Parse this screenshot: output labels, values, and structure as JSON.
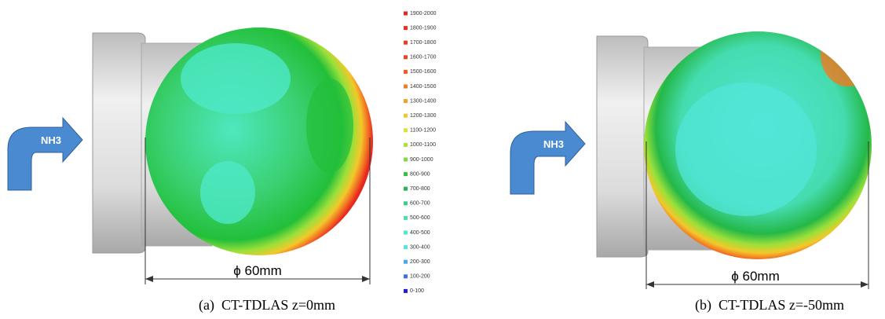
{
  "panels": [
    {
      "arrow_label": "NH3",
      "dimension": "ϕ 60mm",
      "caption": "(a)  CT-TDLAS z=0mm"
    },
    {
      "arrow_label": "NH3",
      "dimension": "ϕ 60mm",
      "caption": "(b)  CT-TDLAS z=-50mm"
    }
  ],
  "legend": [
    {
      "label": "1900-2000",
      "color": "#e8281e"
    },
    {
      "label": "1800-1900",
      "color": "#ea3020"
    },
    {
      "label": "1700-1800",
      "color": "#ec3a22"
    },
    {
      "label": "1600-1700",
      "color": "#ee4424"
    },
    {
      "label": "1500-1600",
      "color": "#f05a24"
    },
    {
      "label": "1400-1500",
      "color": "#f27a24"
    },
    {
      "label": "1300-1400",
      "color": "#f4a028"
    },
    {
      "label": "1200-1300",
      "color": "#f2c82a"
    },
    {
      "label": "1100-1200",
      "color": "#dde22e"
    },
    {
      "label": "1000-1100",
      "color": "#b0e03a"
    },
    {
      "label": "900-1000",
      "color": "#7ed84a"
    },
    {
      "label": "800-900",
      "color": "#2fc43a"
    },
    {
      "label": "700-800",
      "color": "#24b848"
    },
    {
      "label": "600-700",
      "color": "#36d08a"
    },
    {
      "label": "500-600",
      "color": "#48e0b0"
    },
    {
      "label": "400-500",
      "color": "#4ee8cc"
    },
    {
      "label": "300-400",
      "color": "#52e6e0"
    },
    {
      "label": "200-300",
      "color": "#4aa8f0"
    },
    {
      "label": "100-200",
      "color": "#3a70e8"
    },
    {
      "label": "0-100",
      "color": "#2020c8"
    }
  ]
}
